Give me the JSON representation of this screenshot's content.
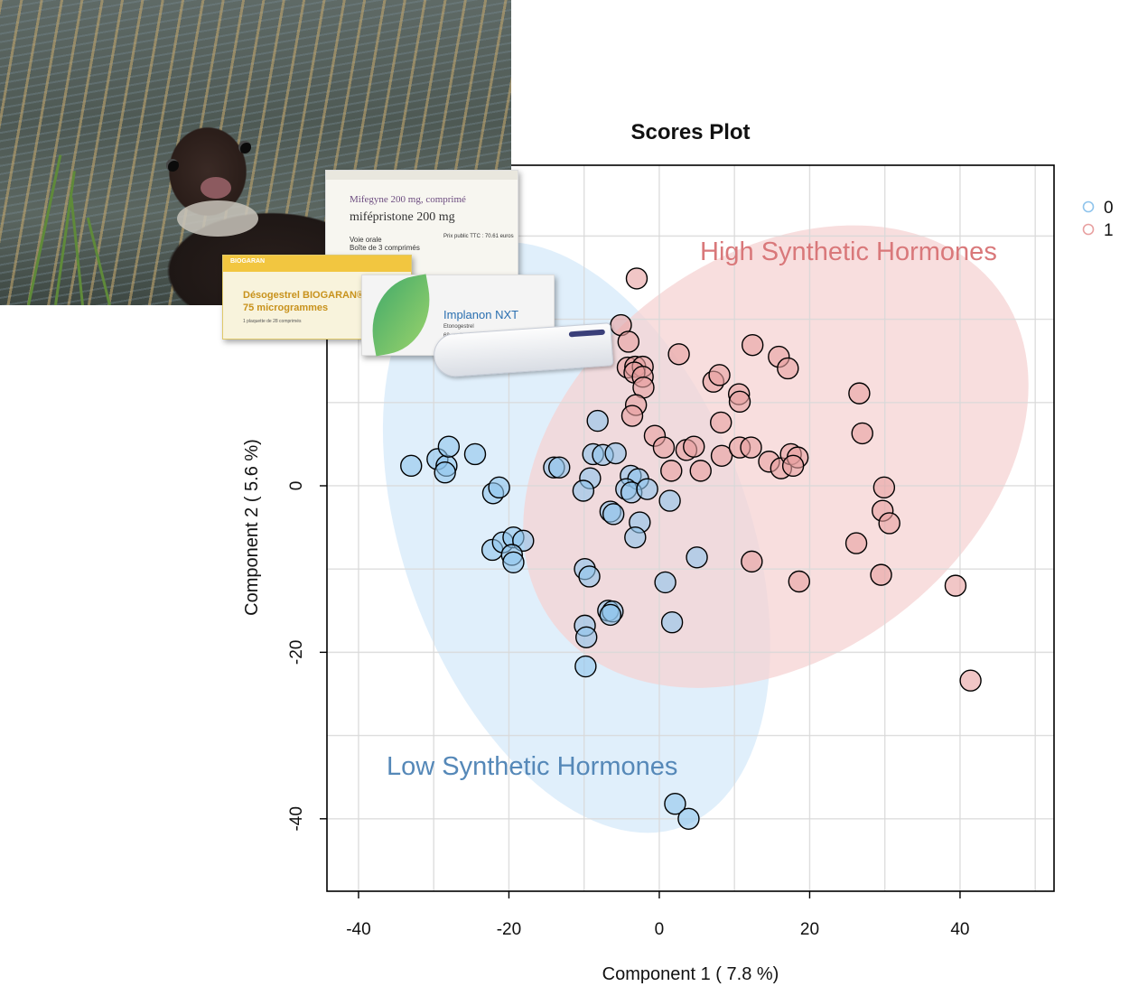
{
  "chart_data": {
    "type": "scatter",
    "title": "Scores Plot",
    "xlabel": "Component 1 ( 7.8 %)",
    "ylabel": "Component 2 ( 5.6 %)",
    "xlim": [
      -44.2,
      52.5
    ],
    "ylim": [
      -48.7,
      38.5
    ],
    "x_ticks": [
      -40,
      -20,
      0,
      20,
      40
    ],
    "y_ticks": [
      -40,
      -20,
      0
    ],
    "grid": true,
    "legend": {
      "placement": "outside-right-top",
      "entries": [
        "0",
        "1"
      ]
    },
    "colors": {
      "0": "#8fc4ec",
      "1": "#e8a0a0"
    },
    "annotations": [
      {
        "text": "High Synthetic Hormones",
        "color": "#d9787a"
      },
      {
        "text": "Low Synthetic Hormones",
        "color": "#5588b8"
      }
    ],
    "ellipses": [
      {
        "group": "0",
        "center": [
          -11,
          -6.2
        ],
        "semi_axes": [
          23,
          37
        ],
        "angle_deg": -20,
        "fill": "#d6e9f9"
      },
      {
        "group": "1",
        "center": [
          15.5,
          3.5
        ],
        "semi_axes": [
          37,
          24
        ],
        "angle_deg": -37,
        "fill": "#f5d3d3"
      }
    ],
    "series": [
      {
        "name": "0",
        "points": [
          [
            -33,
            2.4
          ],
          [
            -29.5,
            3.2
          ],
          [
            -28.3,
            2.4
          ],
          [
            -28.5,
            1.6
          ],
          [
            -28,
            4.7
          ],
          [
            -24.5,
            3.8
          ],
          [
            -14,
            2.2
          ],
          [
            -13.3,
            2.2
          ],
          [
            -9.2,
            0.9
          ],
          [
            -10.1,
            -0.6
          ],
          [
            -8.8,
            3.8
          ],
          [
            -8.2,
            7.8
          ],
          [
            -7.5,
            3.7
          ],
          [
            -5.8,
            3.9
          ],
          [
            -3.8,
            1.2
          ],
          [
            -2.8,
            0.8
          ],
          [
            -4.4,
            -0.4
          ],
          [
            -3.7,
            -0.8
          ],
          [
            -1.6,
            -0.4
          ],
          [
            -6.5,
            -3.1
          ],
          [
            -6.1,
            -3.4
          ],
          [
            -2.6,
            -4.4
          ],
          [
            -3.2,
            -6.2
          ],
          [
            1.4,
            -1.8
          ],
          [
            -22.1,
            -0.9
          ],
          [
            -21.3,
            -0.2
          ],
          [
            -22.2,
            -7.7
          ],
          [
            -20.8,
            -6.8
          ],
          [
            -19.4,
            -6.2
          ],
          [
            -18.1,
            -6.6
          ],
          [
            -19.6,
            -8.3
          ],
          [
            -19.4,
            -9.2
          ],
          [
            -9.9,
            -10
          ],
          [
            -9.3,
            -10.9
          ],
          [
            -6.8,
            -15
          ],
          [
            -6.2,
            -15.1
          ],
          [
            -6.5,
            -15.5
          ],
          [
            -9.9,
            -16.8
          ],
          [
            -9.7,
            -18.2
          ],
          [
            -9.8,
            -21.7
          ],
          [
            5,
            -8.6
          ],
          [
            0.8,
            -11.6
          ],
          [
            1.7,
            -16.4
          ],
          [
            2.1,
            -38.2
          ],
          [
            3.9,
            -40
          ]
        ]
      },
      {
        "name": "1",
        "points": [
          [
            -3,
            24.9
          ],
          [
            -5.1,
            19.3
          ],
          [
            -4.1,
            17.3
          ],
          [
            -4.2,
            14.2
          ],
          [
            -3.2,
            14.3
          ],
          [
            -2.2,
            14.3
          ],
          [
            -3.3,
            13.6
          ],
          [
            -2.2,
            13.1
          ],
          [
            -2.1,
            11.8
          ],
          [
            -3.1,
            9.7
          ],
          [
            -3.6,
            8.4
          ],
          [
            2.6,
            15.8
          ],
          [
            12.4,
            16.9
          ],
          [
            15.9,
            15.5
          ],
          [
            17.1,
            14.1
          ],
          [
            7.2,
            12.5
          ],
          [
            8,
            13.3
          ],
          [
            10.6,
            11
          ],
          [
            10.7,
            10.1
          ],
          [
            8.2,
            7.6
          ],
          [
            -0.6,
            6
          ],
          [
            0.6,
            4.6
          ],
          [
            3.6,
            4.3
          ],
          [
            4.6,
            4.7
          ],
          [
            1.6,
            1.8
          ],
          [
            5.5,
            1.8
          ],
          [
            8.3,
            3.6
          ],
          [
            10.7,
            4.6
          ],
          [
            12.2,
            4.6
          ],
          [
            14.6,
            2.9
          ],
          [
            16.2,
            2.1
          ],
          [
            17.5,
            3.8
          ],
          [
            18.4,
            3.4
          ],
          [
            17.8,
            2.4
          ],
          [
            26.6,
            11.1
          ],
          [
            27,
            6.3
          ],
          [
            29.9,
            -0.2
          ],
          [
            29.7,
            -3
          ],
          [
            30.6,
            -4.5
          ],
          [
            26.2,
            -6.9
          ],
          [
            29.5,
            -10.7
          ],
          [
            12.3,
            -9.1
          ],
          [
            18.6,
            -11.5
          ],
          [
            39.4,
            -12
          ],
          [
            41.4,
            -23.4
          ]
        ]
      }
    ]
  }
}
